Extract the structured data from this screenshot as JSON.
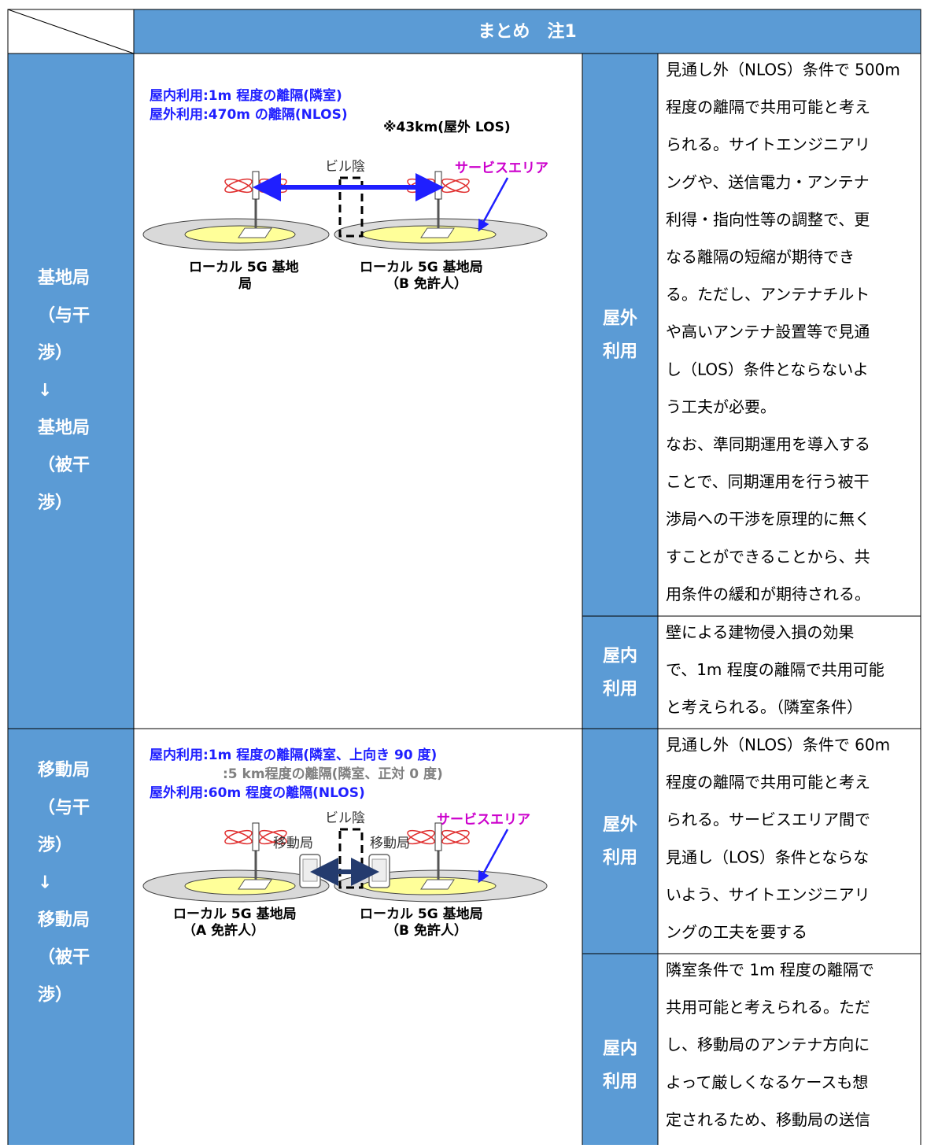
{
  "table": {
    "header": "まとめ　注1",
    "rows": [
      {
        "label": [
          "基地局",
          "（与干",
          "渉）",
          "↓",
          "基地局",
          "（被干",
          "渉）"
        ],
        "diagram": {
          "notes": [
            "屋内利用:1m 程度の離隔(隣室)",
            "屋外利用:470m の離隔(NLOS)"
          ],
          "note_los": "※43km(屋外 LOS)",
          "shadow": "ビル陰",
          "service_area": "サービスエリア",
          "station_a": [
            "ローカル 5G 基地",
            "局"
          ],
          "station_b": [
            "ローカル 5G 基地局",
            "（B 免許人）"
          ]
        },
        "cases": [
          {
            "usage": [
              "屋外",
              "利用"
            ],
            "summary": [
              "見通し外（NLOS）条件で 500m",
              "程度の離隔で共用可能と考え",
              "られる。サイトエンジニアリ",
              "ングや、送信電力・アンテナ",
              "利得・指向性等の調整で、更",
              "なる離隔の短縮が期待でき",
              "る。ただし、アンテナチルト",
              "や高いアンテナ設置等で見通",
              "し（LOS）条件とならないよ",
              "う工夫が必要。",
              "なお、準同期運用を導入する",
              "ことで、同期運用を行う被干",
              "渉局への干渉を原理的に無く",
              "すことができることから、共",
              "用条件の緩和が期待される。"
            ]
          },
          {
            "usage": [
              "屋内",
              "利用"
            ],
            "summary": [
              "壁による建物侵入損の効果",
              "で、1m 程度の離隔で共用可能",
              "と考えられる。（隣室条件）"
            ]
          }
        ]
      },
      {
        "label": [
          "移動局",
          "（与干",
          "渉）",
          "↓",
          "移動局",
          "（被干",
          "渉）"
        ],
        "diagram": {
          "notes": [
            "屋内利用:1m 程度の離隔(隣室、上向き 90 度)",
            ":5 km程度の離隔(隣室、正対 0 度)",
            "屋外利用:60m 程度の離隔(NLOS)"
          ],
          "shadow": "ビル陰",
          "service_area": "サービスエリア",
          "mobile_a": "移動局",
          "mobile_b": "移動局",
          "station_a": [
            "ローカル 5G 基地局",
            "（A 免許人）"
          ],
          "station_b": [
            "ローカル 5G 基地局",
            "（B 免許人）"
          ]
        },
        "cases": [
          {
            "usage": [
              "屋外",
              "利用"
            ],
            "summary": [
              "見通し外（NLOS）条件で 60m",
              "程度の離隔で共用可能と考え",
              "られる。サービスエリア間で",
              "見通し（LOS）条件とならな",
              "いよう、サイトエンジニアリ",
              "ングの工夫を要する"
            ]
          },
          {
            "usage": [
              "屋内",
              "利用"
            ],
            "summary": [
              "隣室条件で 1m 程度の離隔で",
              "共用可能と考えられる。ただ",
              "し、移動局のアンテナ方向に",
              "よって厳しくなるケースも想",
              "定されるため、移動局の送信"
            ]
          }
        ]
      }
    ]
  }
}
